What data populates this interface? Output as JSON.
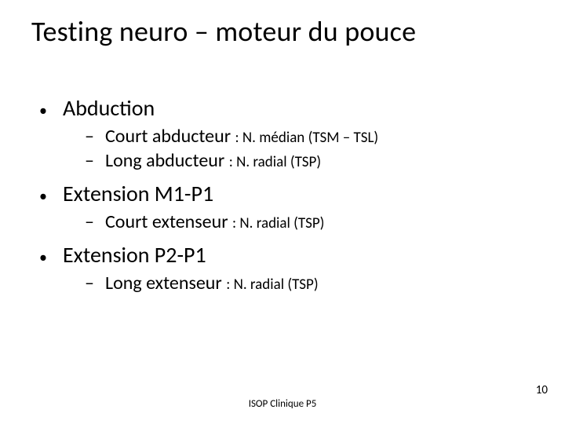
{
  "title": "Testing neuro – moteur du pouce",
  "sections": [
    {
      "heading": "Abduction",
      "items": [
        {
          "main": "Court abducteur ",
          "sub": ": N. médian (TSM – TSL)"
        },
        {
          "main": "Long abducteur ",
          "sub": ": N. radial (TSP)"
        }
      ]
    },
    {
      "heading": "Extension M1-P1",
      "items": [
        {
          "main": "Court extenseur ",
          "sub": ": N. radial (TSP)"
        }
      ]
    },
    {
      "heading": "Extension P2-P1",
      "items": [
        {
          "main": "Long extenseur ",
          "sub": ": N. radial (TSP)"
        }
      ]
    }
  ],
  "footer": "ISOP Clinique P5",
  "page_number": "10",
  "colors": {
    "text": "#000000",
    "background": "#ffffff"
  },
  "typography": {
    "title_fontsize": 36,
    "level1_fontsize": 28,
    "level2_main_fontsize": 24,
    "level2_sub_fontsize": 19,
    "footer_fontsize": 13,
    "pagenum_fontsize": 15,
    "font_family": "Calibri"
  }
}
